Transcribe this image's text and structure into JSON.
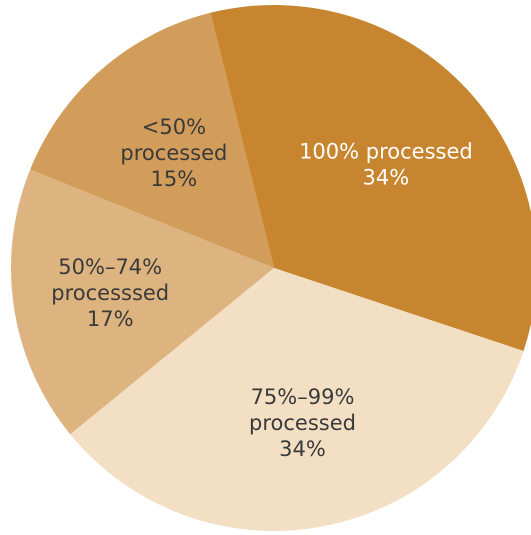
{
  "chart_data": {
    "type": "pie",
    "slices": [
      {
        "label_lines": [
          "100% processed"
        ],
        "value_text": "34%",
        "value": 34,
        "color": "#c6852e",
        "text_color": "#ffffff"
      },
      {
        "label_lines": [
          "75%–99%",
          "processed"
        ],
        "value_text": "34%",
        "value": 34,
        "color": "#f3dfc4",
        "text_color": "#3a3a3a"
      },
      {
        "label_lines": [
          "50%–74%",
          "processsed"
        ],
        "value_text": "17%",
        "value": 17,
        "color": "#ddb47f",
        "text_color": "#3a3a3a"
      },
      {
        "label_lines": [
          "<50%",
          "processed"
        ],
        "value_text": "15%",
        "value": 15,
        "color": "#d29d5a",
        "text_color": "#3a3a3a"
      }
    ]
  }
}
